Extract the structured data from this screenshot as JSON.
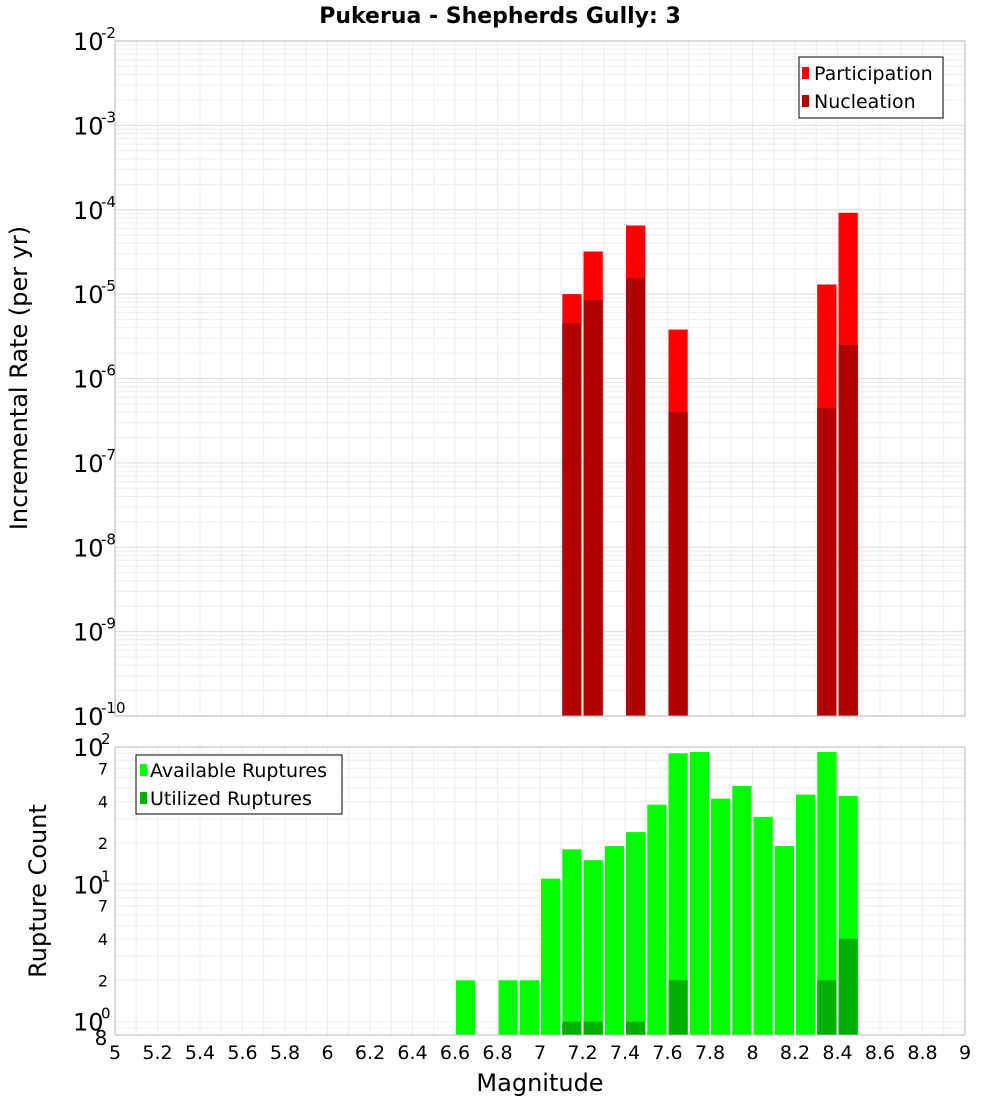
{
  "chart_data": [
    {
      "type": "bar",
      "title": "Pukerua - Shepherds Gully: 3",
      "xlabel": "Magnitude",
      "ylabel": "Incremental Rate (per yr)",
      "yscale": "log",
      "ylim": [
        1e-10,
        0.01
      ],
      "xlim": [
        5,
        9
      ],
      "bin_width": 0.1,
      "y_tick_labels": [
        {
          "base": "10",
          "exp": "-10"
        },
        {
          "base": "10",
          "exp": "-9"
        },
        {
          "base": "10",
          "exp": "-8"
        },
        {
          "base": "10",
          "exp": "-7"
        },
        {
          "base": "10",
          "exp": "-6"
        },
        {
          "base": "10",
          "exp": "-5"
        },
        {
          "base": "10",
          "exp": "-4"
        },
        {
          "base": "10",
          "exp": "-3"
        },
        {
          "base": "10",
          "exp": "-2"
        }
      ],
      "legend_position": "top-right",
      "series": [
        {
          "name": "Participation",
          "color": "#ff0000",
          "x": [
            7.15,
            7.25,
            7.45,
            7.65,
            8.35,
            8.45
          ],
          "values": [
            1e-05,
            3.2e-05,
            6.5e-05,
            3.8e-06,
            1.3e-05,
            9.2e-05
          ]
        },
        {
          "name": "Nucleation",
          "color": "#b20000",
          "x": [
            7.15,
            7.25,
            7.45,
            7.65,
            8.35,
            8.45
          ],
          "values": [
            4.5e-06,
            8.5e-06,
            1.55e-05,
            4e-07,
            4.5e-07,
            2.5e-06
          ]
        }
      ]
    },
    {
      "type": "bar",
      "xlabel": "Magnitude",
      "ylabel": "Rupture Count",
      "yscale": "log",
      "ylim": [
        0.8,
        100
      ],
      "xlim": [
        5,
        9
      ],
      "bin_width": 0.1,
      "x_tick_labels": [
        "5",
        "5.2",
        "5.4",
        "5.6",
        "5.8",
        "6",
        "6.2",
        "6.4",
        "6.6",
        "6.8",
        "7",
        "7.2",
        "7.4",
        "7.6",
        "7.8",
        "8",
        "8.2",
        "8.4",
        "8.6",
        "8.8",
        "9"
      ],
      "y_major_tick_labels": [
        {
          "base": "10",
          "exp": "0",
          "value": 1
        },
        {
          "base": "10",
          "exp": "1",
          "value": 10
        },
        {
          "base": "10",
          "exp": "2",
          "value": 100
        }
      ],
      "y_minor_tick_labels": [
        {
          "label": "8",
          "value": 0.8
        },
        {
          "label": "2",
          "value": 2
        },
        {
          "label": "4",
          "value": 4
        },
        {
          "label": "7",
          "value": 7
        },
        {
          "label": "2",
          "value": 20
        },
        {
          "label": "4",
          "value": 40
        },
        {
          "label": "7",
          "value": 70
        }
      ],
      "legend_position": "top-left",
      "series": [
        {
          "name": "Available Ruptures",
          "color": "#00ff00",
          "x": [
            6.65,
            6.85,
            6.95,
            7.05,
            7.15,
            7.25,
            7.35,
            7.45,
            7.55,
            7.65,
            7.75,
            7.85,
            7.95,
            8.05,
            8.15,
            8.25,
            8.35,
            8.45
          ],
          "values": [
            2,
            2,
            2,
            11,
            18,
            15,
            19,
            24,
            38,
            90,
            92,
            42,
            52,
            31,
            19,
            45,
            92,
            44
          ]
        },
        {
          "name": "Utilized Ruptures",
          "color": "#00b000",
          "x": [
            7.15,
            7.25,
            7.45,
            7.65,
            8.35,
            8.45
          ],
          "values": [
            1,
            1,
            1,
            2,
            2,
            4
          ]
        }
      ]
    }
  ]
}
